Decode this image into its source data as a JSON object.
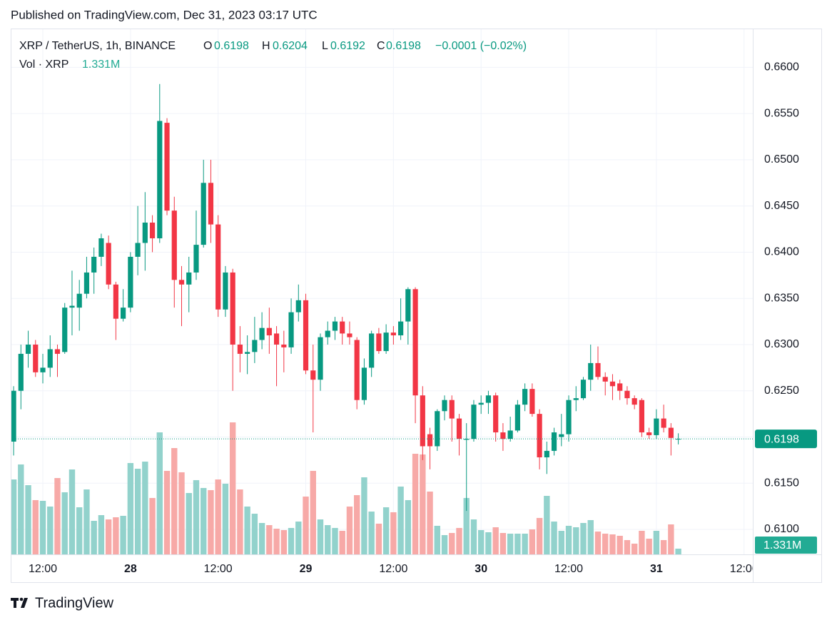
{
  "published": "Published on TradingView.com, Dec 31, 2023 03:17 UTC",
  "footer": "TradingView",
  "chart_data": {
    "type": "candlestick",
    "title": "XRP / TetherUS, 1h, BINANCE",
    "ohlc_letters": [
      "O",
      "H",
      "L",
      "C"
    ],
    "change": "−0.0001 (−0.02%)",
    "volume_title": "Vol · XRP",
    "volume_label": "1.331M",
    "up_color": "#089981",
    "down_color": "#f23645",
    "volume_up_color": "#92d2cc",
    "volume_down_color": "#f7a9a7",
    "grid": true,
    "ylim": [
      0.6073,
      0.6642
    ],
    "yticks": [
      {
        "value": 0.61,
        "label": "0.6100"
      },
      {
        "value": 0.615,
        "label": "0.6150"
      },
      {
        "value": 0.62,
        "label": "0.6200"
      },
      {
        "value": 0.625,
        "label": "0.6250"
      },
      {
        "value": 0.63,
        "label": "0.6300"
      },
      {
        "value": 0.635,
        "label": "0.6350"
      },
      {
        "value": 0.64,
        "label": "0.6400"
      },
      {
        "value": 0.645,
        "label": "0.6450"
      },
      {
        "value": 0.65,
        "label": "0.6500"
      },
      {
        "value": 0.655,
        "label": "0.6550"
      },
      {
        "value": 0.66,
        "label": "0.6600"
      }
    ],
    "xlim": [
      -0.3,
      101.2
    ],
    "xticks": [
      {
        "value": 4,
        "label": "12:00"
      },
      {
        "value": 16,
        "label": "28"
      },
      {
        "value": 28,
        "label": "12:00"
      },
      {
        "value": 40,
        "label": "29"
      },
      {
        "value": 52,
        "label": "12:00"
      },
      {
        "value": 64,
        "label": "30"
      },
      {
        "value": 76,
        "label": "12:00"
      },
      {
        "value": 88,
        "label": "31"
      },
      {
        "value": 100,
        "label": "12:00"
      }
    ],
    "open": [
      0.6195,
      0.625,
      0.629,
      0.63,
      0.627,
      0.6275,
      0.6295,
      0.6292,
      0.634,
      0.634,
      0.6355,
      0.6378,
      0.6395,
      0.641,
      0.6365,
      0.6328,
      0.634,
      0.6395,
      0.641,
      0.6432,
      0.6415,
      0.654,
      0.6445,
      0.637,
      0.6365,
      0.6378,
      0.6408,
      0.6475,
      0.643,
      0.6338,
      0.6378,
      0.63,
      0.629,
      0.6292,
      0.6305,
      0.6318,
      0.6312,
      0.63,
      0.6297,
      0.6335,
      0.6348,
      0.6272,
      0.6262,
      0.6308,
      0.6315,
      0.6325,
      0.6312,
      0.6305,
      0.624,
      0.6275,
      0.6312,
      0.6293,
      0.6313,
      0.631,
      0.6325,
      0.636,
      0.6245,
      0.6203,
      0.619,
      0.6228,
      0.624,
      0.622,
      0.6197,
      0.6198,
      0.6235,
      0.6237,
      0.6245,
      0.6205,
      0.6198,
      0.6207,
      0.6235,
      0.6252,
      0.6225,
      0.6178,
      0.6185,
      0.62,
      0.6203,
      0.624,
      0.6242,
      0.6262,
      0.628,
      0.6265,
      0.626,
      0.6258,
      0.625,
      0.6242,
      0.624,
      0.6205,
      0.6202,
      0.622,
      0.621,
      0.6198
    ],
    "high": [
      0.6255,
      0.63,
      0.6315,
      0.6305,
      0.629,
      0.631,
      0.63,
      0.6345,
      0.638,
      0.637,
      0.6395,
      0.6405,
      0.642,
      0.6418,
      0.6368,
      0.636,
      0.64,
      0.645,
      0.6465,
      0.644,
      0.6582,
      0.6545,
      0.646,
      0.6385,
      0.6395,
      0.6445,
      0.65,
      0.65,
      0.644,
      0.6385,
      0.6382,
      0.632,
      0.631,
      0.633,
      0.6335,
      0.634,
      0.632,
      0.6315,
      0.635,
      0.6365,
      0.6355,
      0.63,
      0.6312,
      0.6325,
      0.633,
      0.633,
      0.6325,
      0.6308,
      0.6285,
      0.6315,
      0.6318,
      0.6322,
      0.632,
      0.635,
      0.6362,
      0.6362,
      0.6255,
      0.621,
      0.623,
      0.6245,
      0.6245,
      0.6225,
      0.6215,
      0.624,
      0.6245,
      0.625,
      0.6248,
      0.6215,
      0.6222,
      0.624,
      0.6258,
      0.6258,
      0.623,
      0.6195,
      0.621,
      0.6225,
      0.6245,
      0.6255,
      0.6265,
      0.63,
      0.6298,
      0.627,
      0.6268,
      0.6262,
      0.6255,
      0.6245,
      0.6242,
      0.621,
      0.623,
      0.6235,
      0.6215,
      0.6204
    ],
    "low": [
      0.618,
      0.623,
      0.6275,
      0.6265,
      0.6258,
      0.6265,
      0.6265,
      0.629,
      0.631,
      0.6315,
      0.635,
      0.6355,
      0.6385,
      0.636,
      0.6305,
      0.6325,
      0.6335,
      0.6375,
      0.638,
      0.64,
      0.641,
      0.644,
      0.634,
      0.632,
      0.6335,
      0.637,
      0.6405,
      0.641,
      0.633,
      0.633,
      0.625,
      0.627,
      0.6268,
      0.628,
      0.6295,
      0.629,
      0.6255,
      0.627,
      0.629,
      0.6325,
      0.6268,
      0.6205,
      0.625,
      0.63,
      0.6305,
      0.63,
      0.63,
      0.623,
      0.6235,
      0.6265,
      0.629,
      0.629,
      0.63,
      0.6305,
      0.63,
      0.6215,
      0.6175,
      0.6165,
      0.6185,
      0.6218,
      0.6195,
      0.618,
      0.612,
      0.6195,
      0.6225,
      0.6225,
      0.6195,
      0.6185,
      0.6195,
      0.6205,
      0.6228,
      0.6222,
      0.6165,
      0.616,
      0.618,
      0.619,
      0.6195,
      0.6228,
      0.624,
      0.625,
      0.6262,
      0.6245,
      0.624,
      0.624,
      0.6235,
      0.623,
      0.62,
      0.6198,
      0.6198,
      0.6205,
      0.618,
      0.6192
    ],
    "close": [
      0.625,
      0.629,
      0.63,
      0.627,
      0.6275,
      0.6295,
      0.629,
      0.634,
      0.6342,
      0.6355,
      0.6378,
      0.6395,
      0.6415,
      0.6365,
      0.6328,
      0.634,
      0.6395,
      0.641,
      0.6432,
      0.6415,
      0.6542,
      0.6445,
      0.637,
      0.6365,
      0.6378,
      0.6408,
      0.6475,
      0.643,
      0.6338,
      0.6378,
      0.63,
      0.629,
      0.6292,
      0.6305,
      0.6318,
      0.631,
      0.63,
      0.6297,
      0.6335,
      0.6348,
      0.6272,
      0.6262,
      0.6308,
      0.6315,
      0.6325,
      0.6312,
      0.6308,
      0.624,
      0.6275,
      0.6312,
      0.6293,
      0.6313,
      0.631,
      0.6325,
      0.636,
      0.6245,
      0.619,
      0.619,
      0.6228,
      0.624,
      0.622,
      0.6198,
      0.6198,
      0.6235,
      0.6237,
      0.6245,
      0.6205,
      0.6198,
      0.6207,
      0.6235,
      0.6252,
      0.6225,
      0.6178,
      0.6185,
      0.6205,
      0.6203,
      0.624,
      0.6242,
      0.6262,
      0.628,
      0.6265,
      0.626,
      0.6255,
      0.625,
      0.6242,
      0.6235,
      0.6205,
      0.6202,
      0.622,
      0.621,
      0.6199,
      0.6198
    ],
    "volume": [
      17.47,
      20.97,
      16.14,
      12.65,
      12.48,
      11.15,
      17.8,
      14.48,
      19.8,
      10.98,
      15.14,
      7.82,
      9.15,
      8.15,
      8.65,
      8.99,
      21.3,
      19.97,
      21.63,
      13.15,
      28.45,
      19.47,
      24.79,
      19.14,
      14.31,
      17.31,
      15.48,
      14.98,
      17.47,
      16.47,
      30.78,
      15.14,
      11.15,
      9.48,
      7.32,
      6.82,
      5.99,
      5.66,
      6.16,
      7.65,
      13.48,
      19.47,
      8.15,
      6.82,
      6.16,
      5.49,
      11.15,
      13.81,
      17.97,
      9.98,
      7.16,
      10.98,
      9.82,
      15.81,
      12.65,
      23.46,
      23.3,
      14.64,
      6.66,
      4.49,
      4.99,
      6.16,
      13.15,
      8.15,
      5.66,
      5.16,
      6.32,
      4.99,
      4.83,
      4.83,
      4.83,
      5.82,
      8.49,
      13.64,
      7.65,
      5.49,
      6.66,
      6.32,
      7.32,
      7.99,
      5.32,
      4.83,
      4.66,
      4.33,
      3.33,
      2.5,
      5.49,
      3.66,
      5.49,
      3.33,
      6.99,
      1.331
    ]
  }
}
